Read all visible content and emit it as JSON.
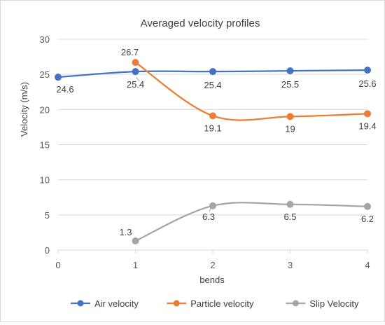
{
  "chart_data": {
    "type": "line",
    "title": "Averaged velocity profiles",
    "xlabel": "bends",
    "ylabel": "Velocity (m/s)",
    "x": [
      0,
      1,
      2,
      3,
      4
    ],
    "xlim": [
      0,
      4
    ],
    "ylim": [
      0,
      30
    ],
    "x_ticks": [
      "0",
      "1",
      "2",
      "3",
      "4"
    ],
    "y_ticks": [
      "0",
      "5",
      "10",
      "15",
      "20",
      "25",
      "30"
    ],
    "grid": "horizontal",
    "legend_position": "bottom",
    "smooth": true,
    "series": [
      {
        "name": "Air velocity",
        "color": "#4472c4",
        "x": [
          0,
          1,
          2,
          3,
          4
        ],
        "values": [
          24.6,
          25.4,
          25.4,
          25.5,
          25.6
        ],
        "labels": [
          "24.6",
          "25.4",
          "25.4",
          "25.5",
          "25.6"
        ]
      },
      {
        "name": "Particle velocity",
        "color": "#ed7d31",
        "x": [
          1,
          2,
          3,
          4
        ],
        "values": [
          26.7,
          19.1,
          19,
          19.4
        ],
        "labels": [
          "26.7",
          "19.1",
          "19",
          "19.4"
        ]
      },
      {
        "name": "Slip Velocity",
        "color": "#a5a5a5",
        "x": [
          1,
          2,
          3,
          4
        ],
        "values": [
          1.3,
          6.3,
          6.5,
          6.2
        ],
        "labels": [
          "1.3",
          "6.3",
          "6.5",
          "6.2"
        ]
      }
    ]
  }
}
